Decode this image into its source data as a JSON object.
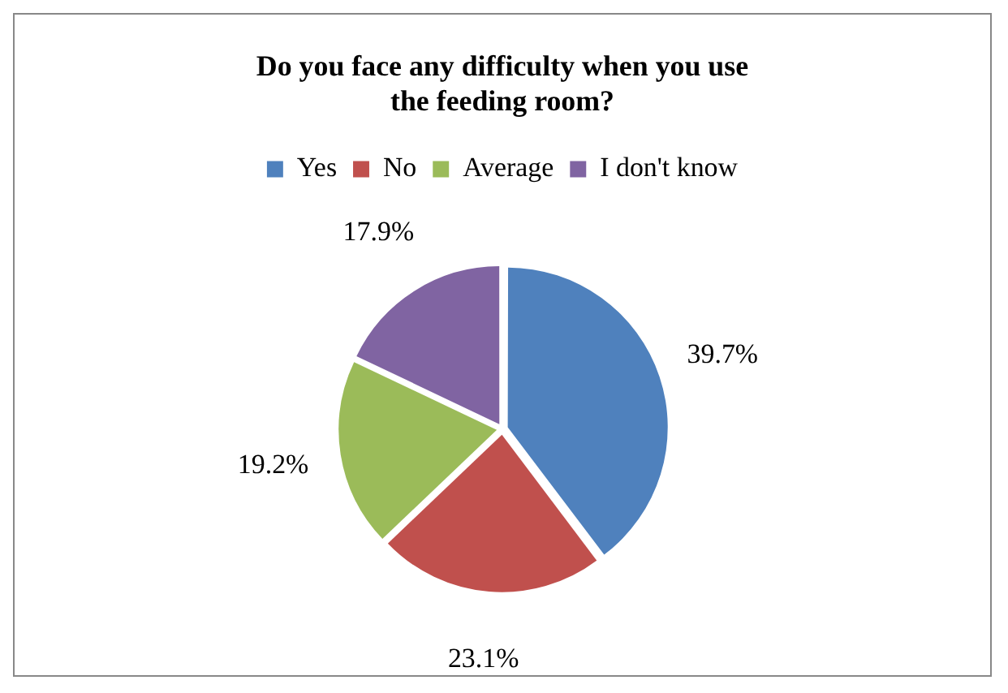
{
  "chart_data": {
    "type": "pie",
    "title": "Do you face any difficulty when you use the feeding room?",
    "categories": [
      "Yes",
      "No",
      "Average",
      "I don't know"
    ],
    "values": [
      39.7,
      23.1,
      19.2,
      17.9
    ],
    "colors": [
      "#4f81bd",
      "#c0504d",
      "#9bbb59",
      "#8064a2"
    ],
    "value_labels": [
      "39.7%",
      "23.1%",
      "19.2%",
      "17.9%"
    ],
    "legend": "top"
  }
}
